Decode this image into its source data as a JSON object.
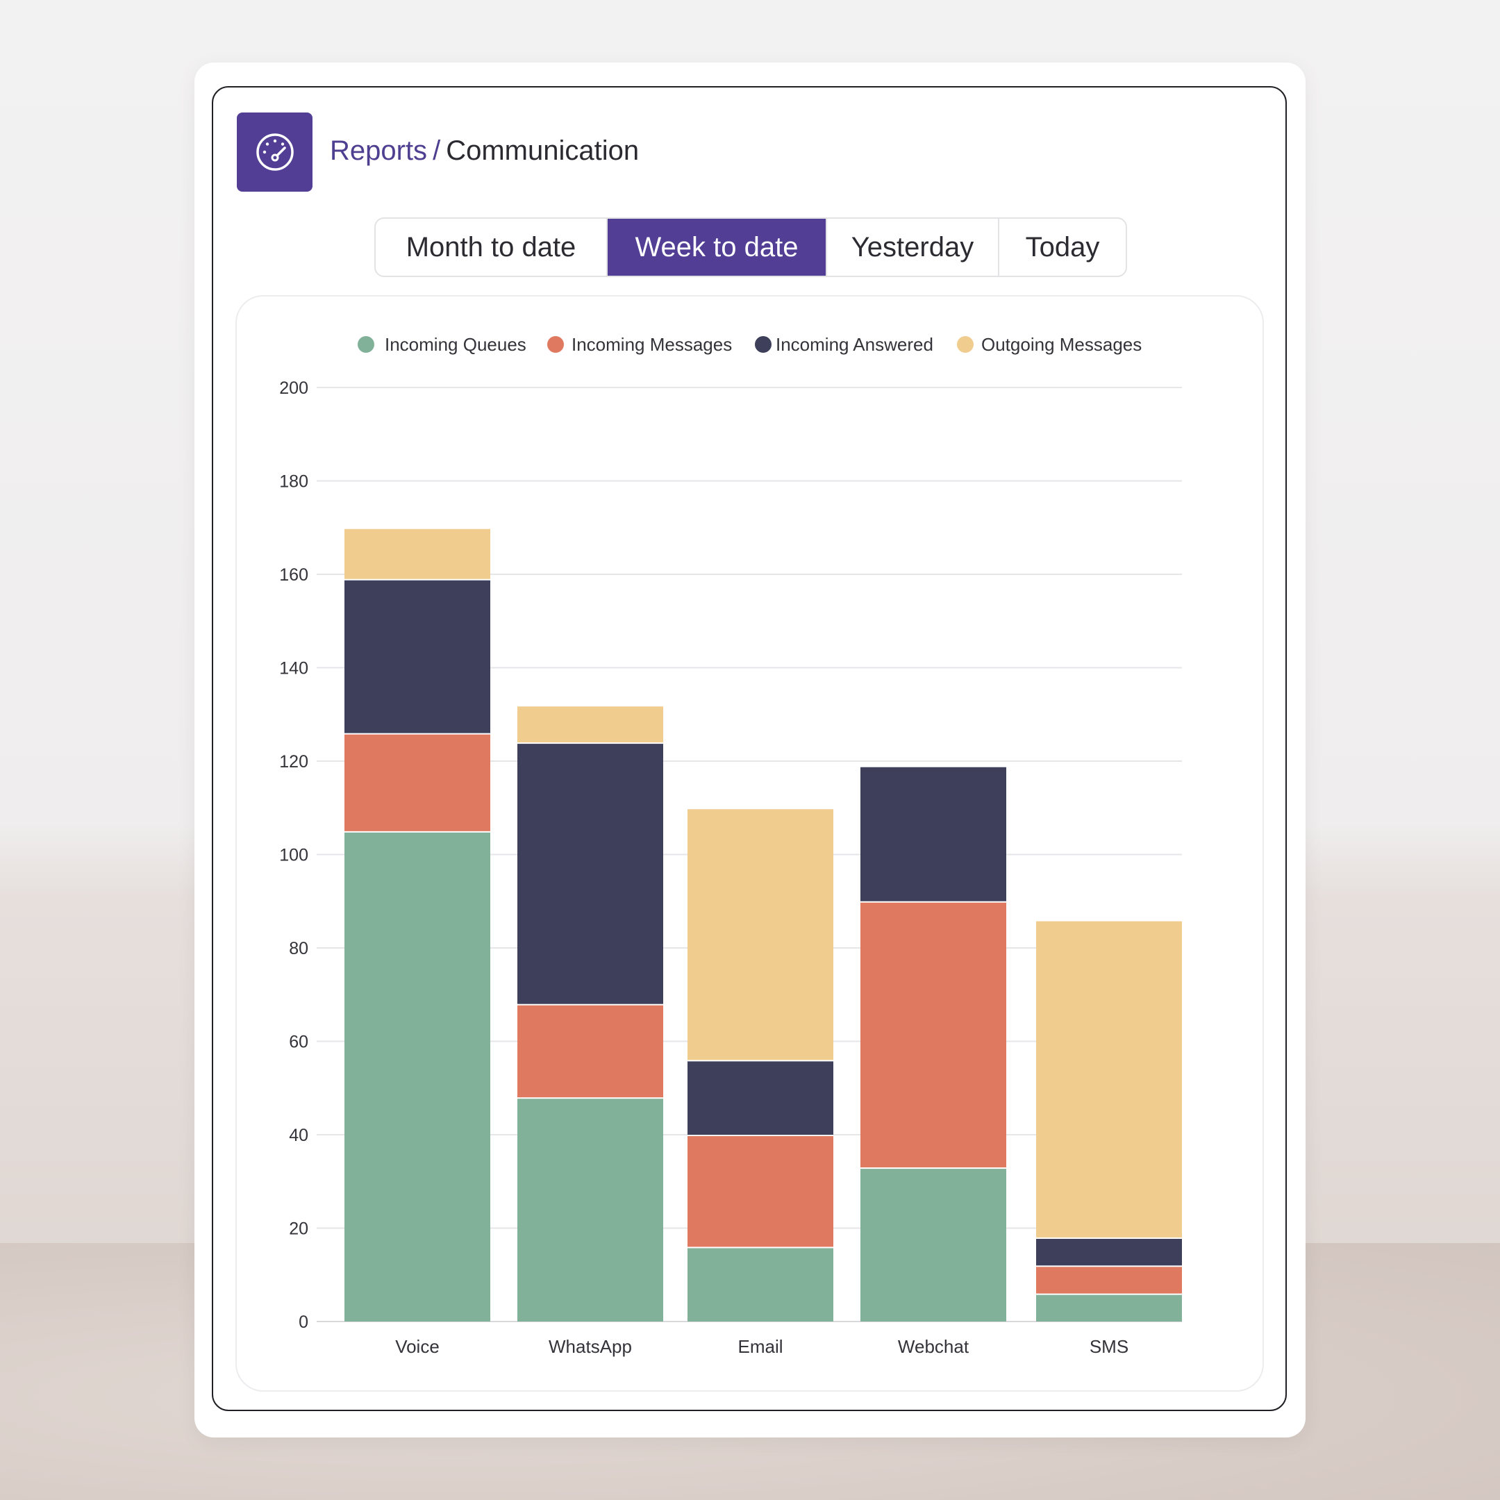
{
  "header": {
    "breadcrumb_parent": "Reports",
    "breadcrumb_separator": "/",
    "breadcrumb_current": "Communication",
    "logo_icon": "speedometer-icon"
  },
  "tabs": [
    {
      "label": "Month to date",
      "active": false
    },
    {
      "label": "Week to date",
      "active": true
    },
    {
      "label": "Yesterday",
      "active": false
    },
    {
      "label": "Today",
      "active": false
    }
  ],
  "colors": {
    "accent": "#523f95",
    "incoming_queues": "#82b19a",
    "incoming_messages": "#df7a61",
    "incoming_answered": "#3d3f5b",
    "outgoing_messages": "#f1cc8f",
    "gridline": "#e6e6e8"
  },
  "chart_data": {
    "type": "bar",
    "stacked": true,
    "categories": [
      "Voice",
      "WhatsApp",
      "Email",
      "Webchat",
      "SMS"
    ],
    "series": [
      {
        "name": "Incoming Queues",
        "color": "#82b19a",
        "values": [
          105,
          48,
          16,
          33,
          6
        ]
      },
      {
        "name": "Incoming Messages",
        "color": "#df7a61",
        "values": [
          21,
          20,
          24,
          57,
          6
        ]
      },
      {
        "name": "Incoming Answered",
        "color": "#3d3f5b",
        "values": [
          33,
          56,
          16,
          29,
          6
        ]
      },
      {
        "name": "Outgoing Messages",
        "color": "#f1cc8f",
        "values": [
          11,
          8,
          54,
          0,
          68
        ]
      }
    ],
    "ylim": [
      0,
      200
    ],
    "yticks": [
      0,
      20,
      40,
      60,
      80,
      100,
      120,
      140,
      160,
      180,
      200
    ],
    "legend_position": "top",
    "grid": true
  }
}
